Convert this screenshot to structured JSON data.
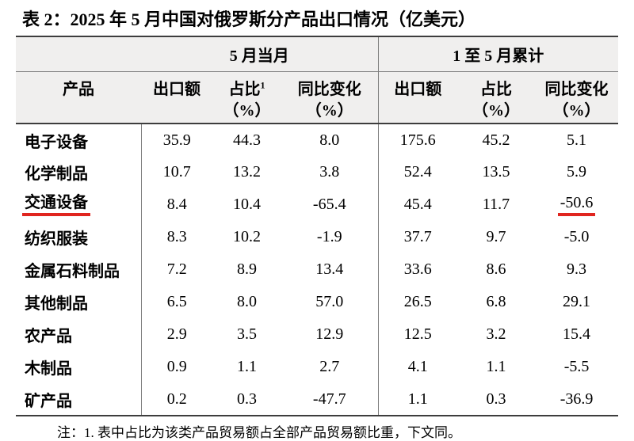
{
  "title": "表 2：2025 年 5 月中国对俄罗斯分产品出口情况（亿美元）",
  "table": {
    "group_headers": [
      "5 月当月",
      "1 至 5 月累计"
    ],
    "columns": [
      {
        "label": "产品"
      },
      {
        "label": "出口额"
      },
      {
        "label": "占比",
        "sup": "1",
        "unit": "（%）"
      },
      {
        "label": "同比变化",
        "unit": "（%）"
      },
      {
        "label": "出口额"
      },
      {
        "label": "占比",
        "unit": "（%）"
      },
      {
        "label": "同比变化",
        "unit": "（%）"
      }
    ],
    "rows": [
      {
        "product": "电子设备",
        "values": [
          "35.9",
          "44.3",
          "8.0",
          "175.6",
          "45.2",
          "5.1"
        ]
      },
      {
        "product": "化学制品",
        "values": [
          "10.7",
          "13.2",
          "3.8",
          "52.4",
          "13.5",
          "5.9"
        ]
      },
      {
        "product": "交通设备",
        "values": [
          "8.4",
          "10.4",
          "-65.4",
          "45.4",
          "11.7",
          "-50.6"
        ],
        "underline_product": true,
        "underline_value_index": 5
      },
      {
        "product": "纺织服装",
        "values": [
          "8.3",
          "10.2",
          "-1.9",
          "37.7",
          "9.7",
          "-5.0"
        ]
      },
      {
        "product": "金属石料制品",
        "values": [
          "7.2",
          "8.9",
          "13.4",
          "33.6",
          "8.6",
          "9.3"
        ]
      },
      {
        "product": "其他制品",
        "values": [
          "6.5",
          "8.0",
          "57.0",
          "26.5",
          "6.8",
          "29.1"
        ]
      },
      {
        "product": "农产品",
        "values": [
          "2.9",
          "3.5",
          "12.9",
          "12.5",
          "3.2",
          "15.4"
        ]
      },
      {
        "product": "木制品",
        "values": [
          "0.9",
          "1.1",
          "2.7",
          "4.1",
          "1.1",
          "-5.5"
        ]
      },
      {
        "product": "矿产品",
        "values": [
          "0.2",
          "0.3",
          "-47.7",
          "1.1",
          "0.3",
          "-36.9"
        ]
      }
    ]
  },
  "note": "注：1. 表中占比为该类产品贸易额占全部产品贸易额比重，下文同。",
  "colors": {
    "header_bg": "#f0efee",
    "border_dark": "#3d3d3d",
    "border_light": "#7e7e7e",
    "highlight_red": "#e0251f",
    "text": "#000000"
  }
}
